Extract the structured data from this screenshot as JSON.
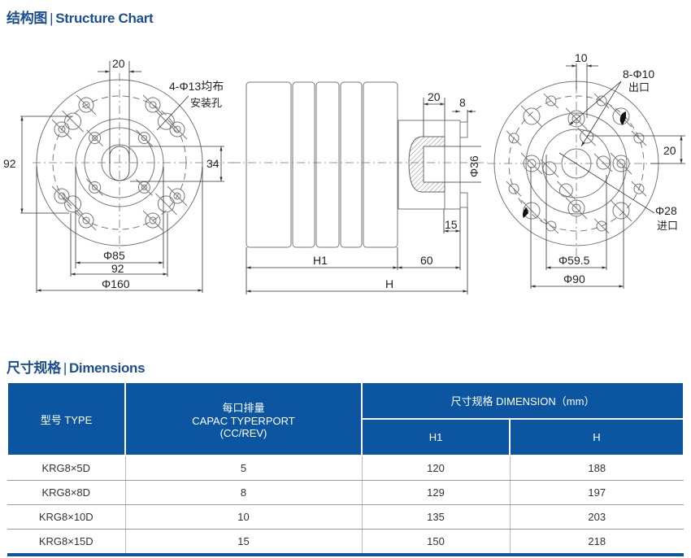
{
  "structure": {
    "title_cn": "结构图",
    "title_en": "Structure Chart"
  },
  "drawing": {
    "left_view": {
      "slot_width": "20",
      "holes_note": "4-Φ13均布",
      "holes_note2": "安装孔",
      "height_dim": "92",
      "slot_dim": "34",
      "d_inner": "Φ85",
      "bolt_span": "92",
      "d_outer": "Φ160"
    },
    "side_view": {
      "shaft_len": "20",
      "flange_thk": "8",
      "shaft_dia": "Φ36",
      "key_len": "15",
      "h1": "H1",
      "ext": "60",
      "h": "H"
    },
    "right_view": {
      "offset": "10",
      "outlet_note": "8-Φ10",
      "outlet_label": "出口",
      "port_offset": "20",
      "inlet_dia": "Φ28",
      "inlet_label": "进口",
      "d_pitch": "Φ59.5",
      "d_outer": "Φ90"
    }
  },
  "dimensions": {
    "title_cn": "尺寸规格",
    "title_en": "Dimensions",
    "headers": {
      "type": "型号 TYPE",
      "capacity_cn": "每口排量",
      "capacity_en": "CAPAC TYPERPORT",
      "capacity_unit": "(CC/REV)",
      "dimension": "尺寸规格 DIMENSION（mm）",
      "h1": "H1",
      "h": "H"
    },
    "rows": [
      {
        "type": "KRG8×5D",
        "capacity": "5",
        "h1": "120",
        "h": "188"
      },
      {
        "type": "KRG8×8D",
        "capacity": "8",
        "h1": "129",
        "h": "197"
      },
      {
        "type": "KRG8×10D",
        "capacity": "10",
        "h1": "135",
        "h": "203"
      },
      {
        "type": "KRG8×15D",
        "capacity": "15",
        "h1": "150",
        "h": "218"
      }
    ]
  },
  "colors": {
    "accent": "#0b55a1",
    "title": "#1b4f93"
  }
}
